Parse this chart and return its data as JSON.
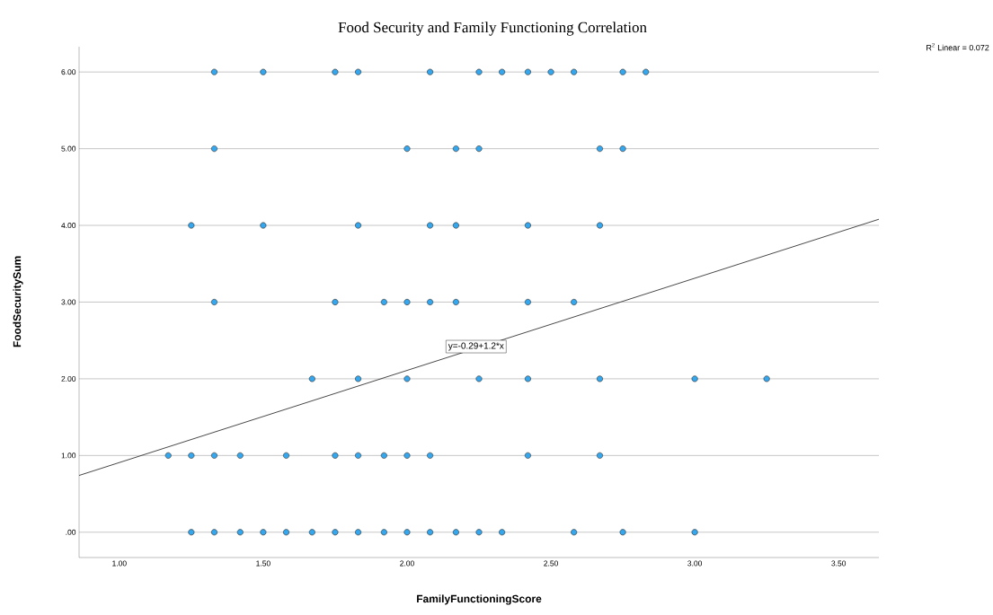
{
  "chart_data": {
    "type": "scatter",
    "title": "Food Security and Family Functioning Correlation",
    "xlabel": "FamilyFunctioningScore",
    "ylabel": "FoodSecuritySum",
    "xlim": [
      0.86,
      3.64
    ],
    "ylim": [
      -0.33,
      6.33
    ],
    "xticks": [
      {
        "value": 1,
        "label": "1.00"
      },
      {
        "value": 1.5,
        "label": "1.50"
      },
      {
        "value": 2,
        "label": "2.00"
      },
      {
        "value": 2.5,
        "label": "2.50"
      },
      {
        "value": 3,
        "label": "3.00"
      },
      {
        "value": 3.5,
        "label": "3.50"
      }
    ],
    "yticks": [
      {
        "value": 0,
        "label": ".00"
      },
      {
        "value": 1,
        "label": "1.00"
      },
      {
        "value": 2,
        "label": "2.00"
      },
      {
        "value": 3,
        "label": "3.00"
      },
      {
        "value": 4,
        "label": "4.00"
      },
      {
        "value": 5,
        "label": "5.00"
      },
      {
        "value": 6,
        "label": "6.00"
      }
    ],
    "grid": "y",
    "series": [
      {
        "marker": "circle",
        "color": "#33a8f0",
        "x": [
          1.25,
          1.33,
          1.42,
          1.5,
          1.58,
          1.67,
          1.75,
          1.83,
          1.92,
          2,
          2.08,
          2.17,
          2.25,
          2.33,
          2.58,
          2.75,
          3,
          1.17,
          1.25,
          1.33,
          1.42,
          1.58,
          1.75,
          1.83,
          1.92,
          2,
          2.08,
          2.42,
          2.67,
          1.67,
          1.83,
          2,
          2.25,
          2.42,
          2.67,
          3,
          3.25,
          1.33,
          1.75,
          1.92,
          2,
          2.08,
          2.17,
          2.42,
          2.58,
          1.25,
          1.5,
          1.83,
          2.08,
          2.17,
          2.42,
          2.67,
          1.33,
          2,
          2.17,
          2.25,
          2.67,
          2.75,
          1.33,
          1.5,
          1.75,
          1.83,
          2.08,
          2.25,
          2.33,
          2.42,
          2.5,
          2.58,
          2.75,
          2.83
        ],
        "values": [
          0,
          0,
          0,
          0,
          0,
          0,
          0,
          0,
          0,
          0,
          0,
          0,
          0,
          0,
          0,
          0,
          0,
          1,
          1,
          1,
          1,
          1,
          1,
          1,
          1,
          1,
          1,
          1,
          1,
          2,
          2,
          2,
          2,
          2,
          2,
          2,
          2,
          3,
          3,
          3,
          3,
          3,
          3,
          3,
          3,
          4,
          4,
          4,
          4,
          4,
          4,
          4,
          5,
          5,
          5,
          5,
          5,
          5,
          6,
          6,
          6,
          6,
          6,
          6,
          6,
          6,
          6,
          6,
          6,
          6
        ]
      },
      {
        "type": "line",
        "marker": "none",
        "color": "#333333",
        "x": [
          0.86,
          3.64
        ],
        "values": [
          0.74,
          4.08
        ]
      }
    ],
    "annotations": [
      {
        "text": "y=-0.29+1.2*x",
        "x": 2.24,
        "y": 2.42
      },
      "R$^{2}$ Linear = 0.072"
    ]
  }
}
